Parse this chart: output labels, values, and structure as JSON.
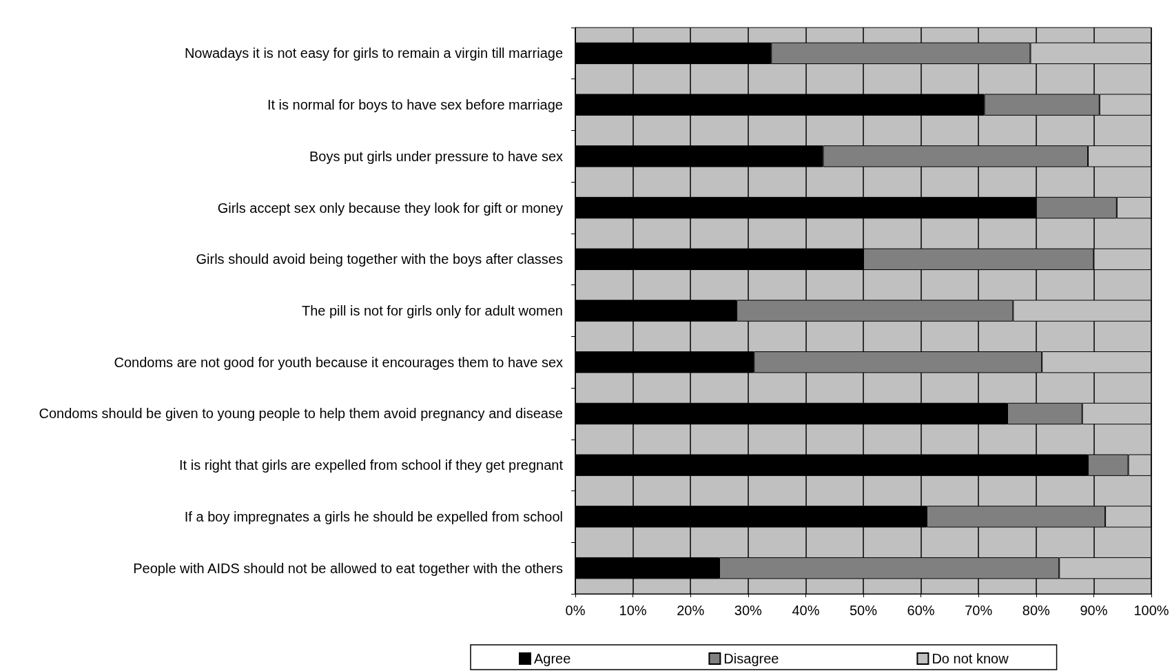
{
  "chart_data": {
    "type": "bar",
    "orientation": "horizontal",
    "stacked": true,
    "categories": [
      "Nowadays it is not easy for girls to remain a virgin till marriage",
      "It is normal for boys to have sex before marriage",
      "Boys put girls under pressure to have sex",
      "Girls accept sex only because they look for gift or money",
      "Girls should avoid being together with the boys after classes",
      "The pill is not for girls only for adult women",
      "Condoms are not good for youth because it encourages them to have sex",
      "Condoms should be given to young people to help them avoid pregnancy and disease",
      "It is right that girls are expelled from school if they get pregnant",
      "If a boy impregnates a girls he should be expelled from school",
      "People with AIDS should not be allowed to eat together with the others"
    ],
    "series": [
      {
        "name": "Agree",
        "color": "#000000",
        "values": [
          34,
          71,
          43,
          80,
          50,
          28,
          31,
          75,
          89,
          61,
          25
        ]
      },
      {
        "name": "Disagree",
        "color": "#808080",
        "values": [
          45,
          20,
          46,
          14,
          40,
          48,
          50,
          13,
          7,
          31,
          59
        ]
      },
      {
        "name": "Do not know",
        "color": "#c0c0c0",
        "values": [
          21,
          9,
          11,
          6,
          10,
          24,
          19,
          12,
          4,
          8,
          16
        ]
      }
    ],
    "xlim": [
      0,
      100
    ],
    "xticks": [
      {
        "value": 0,
        "label": "0%"
      },
      {
        "value": 10,
        "label": "10%"
      },
      {
        "value": 20,
        "label": "20%"
      },
      {
        "value": 30,
        "label": "30%"
      },
      {
        "value": 40,
        "label": "40%"
      },
      {
        "value": 50,
        "label": "50%"
      },
      {
        "value": 60,
        "label": "60%"
      },
      {
        "value": 70,
        "label": "70%"
      },
      {
        "value": 80,
        "label": "80%"
      },
      {
        "value": 90,
        "label": "90%"
      },
      {
        "value": 100,
        "label": "100%"
      }
    ],
    "grid": "x",
    "legend": "bottom"
  }
}
